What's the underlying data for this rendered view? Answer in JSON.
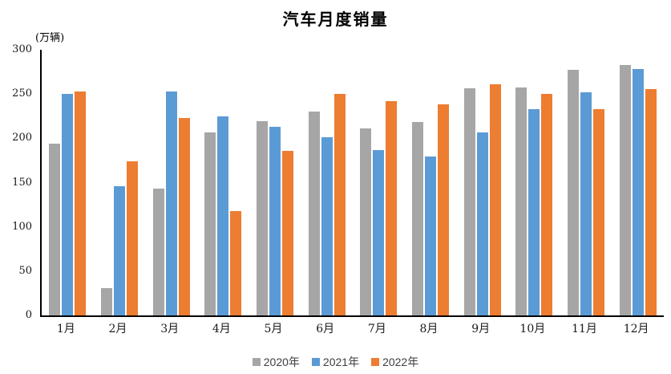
{
  "title": "汽车月度销量",
  "unit_label": "(万辆)",
  "chart_data": {
    "type": "bar",
    "title": "汽车月度销量",
    "ylabel": "(万辆)",
    "xlabel": "",
    "categories": [
      "1月",
      "2月",
      "3月",
      "4月",
      "5月",
      "6月",
      "7月",
      "8月",
      "9月",
      "10月",
      "11月",
      "12月"
    ],
    "series": [
      {
        "name": "2020年",
        "color": "#A6A6A6",
        "values": [
          194.1,
          31.0,
          143.0,
          207.0,
          219.4,
          230.0,
          211.2,
          218.6,
          256.5,
          257.3,
          277.0,
          283.1
        ]
      },
      {
        "name": "2021年",
        "color": "#5B9BD5",
        "values": [
          250.3,
          145.5,
          252.6,
          225.2,
          212.8,
          201.5,
          186.4,
          179.9,
          206.7,
          233.3,
          252.2,
          278.6
        ]
      },
      {
        "name": "2022年",
        "color": "#ED7D31",
        "values": [
          253.1,
          173.7,
          223.4,
          118.1,
          186.2,
          250.2,
          242.0,
          238.3,
          261.0,
          250.5,
          232.8,
          255.6
        ]
      }
    ],
    "ylim": [
      0,
      300
    ],
    "yticks": [
      0,
      50,
      100,
      150,
      200,
      250,
      300
    ],
    "grid": false,
    "legend_position": "bottom",
    "axis_color": "#000000",
    "background": "#FFFFFF"
  }
}
